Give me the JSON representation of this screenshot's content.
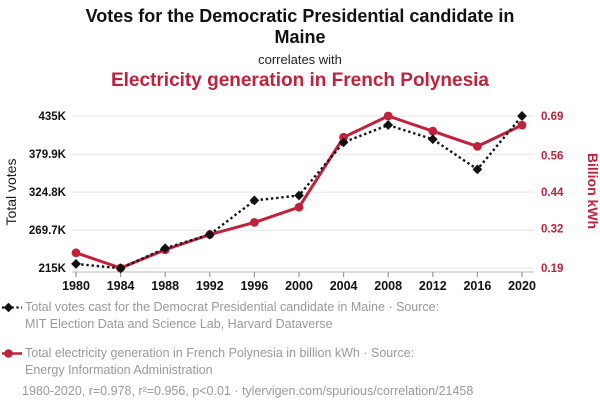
{
  "colors": {
    "accent_red": "#c0223c",
    "series_black": "#111111",
    "text_gray": "#999999",
    "grid_gray": "#e4e4e4",
    "axis_gray": "#c9c9c9"
  },
  "chart_data": {
    "type": "line",
    "title": "Votes for the Democratic Presidential candidate in Maine",
    "connector": "correlates with",
    "subtitle": "Electricity generation in French Polynesia",
    "x": [
      1980,
      1984,
      1988,
      1992,
      1996,
      2000,
      2004,
      2008,
      2012,
      2016,
      2020
    ],
    "x_tick_labels": [
      "1980",
      "1984",
      "1988",
      "1992",
      "1996",
      "2000",
      "2004",
      "2008",
      "2012",
      "2016",
      "2020"
    ],
    "grid": true,
    "legend_position": "bottom",
    "left_axis": {
      "label": "Total votes",
      "range": [
        215000,
        435000
      ],
      "tick_labels": [
        "215K",
        "269.7K",
        "324.8K",
        "379.9K",
        "435K"
      ],
      "tick_values": [
        215000,
        269700,
        324800,
        379900,
        435000
      ]
    },
    "right_axis": {
      "label": "Billion kWh",
      "range": [
        0.19,
        0.69
      ],
      "tick_labels": [
        "0.19",
        "0.32",
        "0.44",
        "0.56",
        "0.69"
      ],
      "tick_values": [
        0.19,
        0.32,
        0.44,
        0.56,
        0.69
      ]
    },
    "series": [
      {
        "name": "Total votes cast for the Democrat Presidential candidate in Maine",
        "axis": "left",
        "color": "#111111",
        "line_style": "dotted",
        "marker": "diamond",
        "values": [
          220974,
          214515,
          243569,
          263420,
          312788,
          319951,
          396842,
          421923,
          401306,
          357735,
          435072
        ]
      },
      {
        "name": "Total electricity generation in French Polynesia in billion kWh",
        "axis": "right",
        "color": "#c0223c",
        "line_style": "solid",
        "marker": "circle",
        "values": [
          0.24,
          0.19,
          0.25,
          0.3,
          0.34,
          0.39,
          0.62,
          0.69,
          0.64,
          0.59,
          0.66
        ]
      }
    ]
  },
  "legend": {
    "items": [
      {
        "marker": "black-diamond-dotted-line",
        "color": "#111111",
        "lines": [
          "Total votes cast for the Democrat Presidential candidate in Maine · Source:",
          "MIT Election Data and Science Lab, Harvard Dataverse"
        ]
      },
      {
        "marker": "red-circle-solid-line",
        "color": "#c0223c",
        "lines": [
          "Total electricity generation in French Polynesia in billion kWh · Source:",
          "Energy Information Administration"
        ]
      }
    ]
  },
  "footer": {
    "text": "1980-2020, r=0.978, r²=0.956, p<0.01 · tylervigen.com/spurious/correlation/21458"
  }
}
